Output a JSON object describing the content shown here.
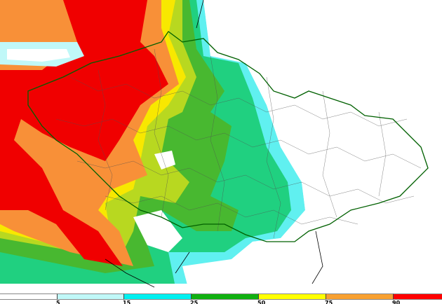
{
  "legend": {
    "thresholds": [
      "5",
      "15",
      "25",
      "50",
      "75",
      "90"
    ],
    "colors": [
      "#ffffff",
      "#c0f8f8",
      "#00f0f0",
      "#10b010",
      "#ffff00",
      "#f8a030",
      "#ff0000"
    ]
  },
  "map_colors": {
    "red": "#f00000",
    "orange": "#f89038",
    "yellow": "#f8e800",
    "yellow_green": "#b8d820",
    "green": "#48b830",
    "teal_green": "#20d080",
    "cyan": "#60f0f0",
    "light_cyan": "#c0f8f8",
    "border": "#006000"
  }
}
